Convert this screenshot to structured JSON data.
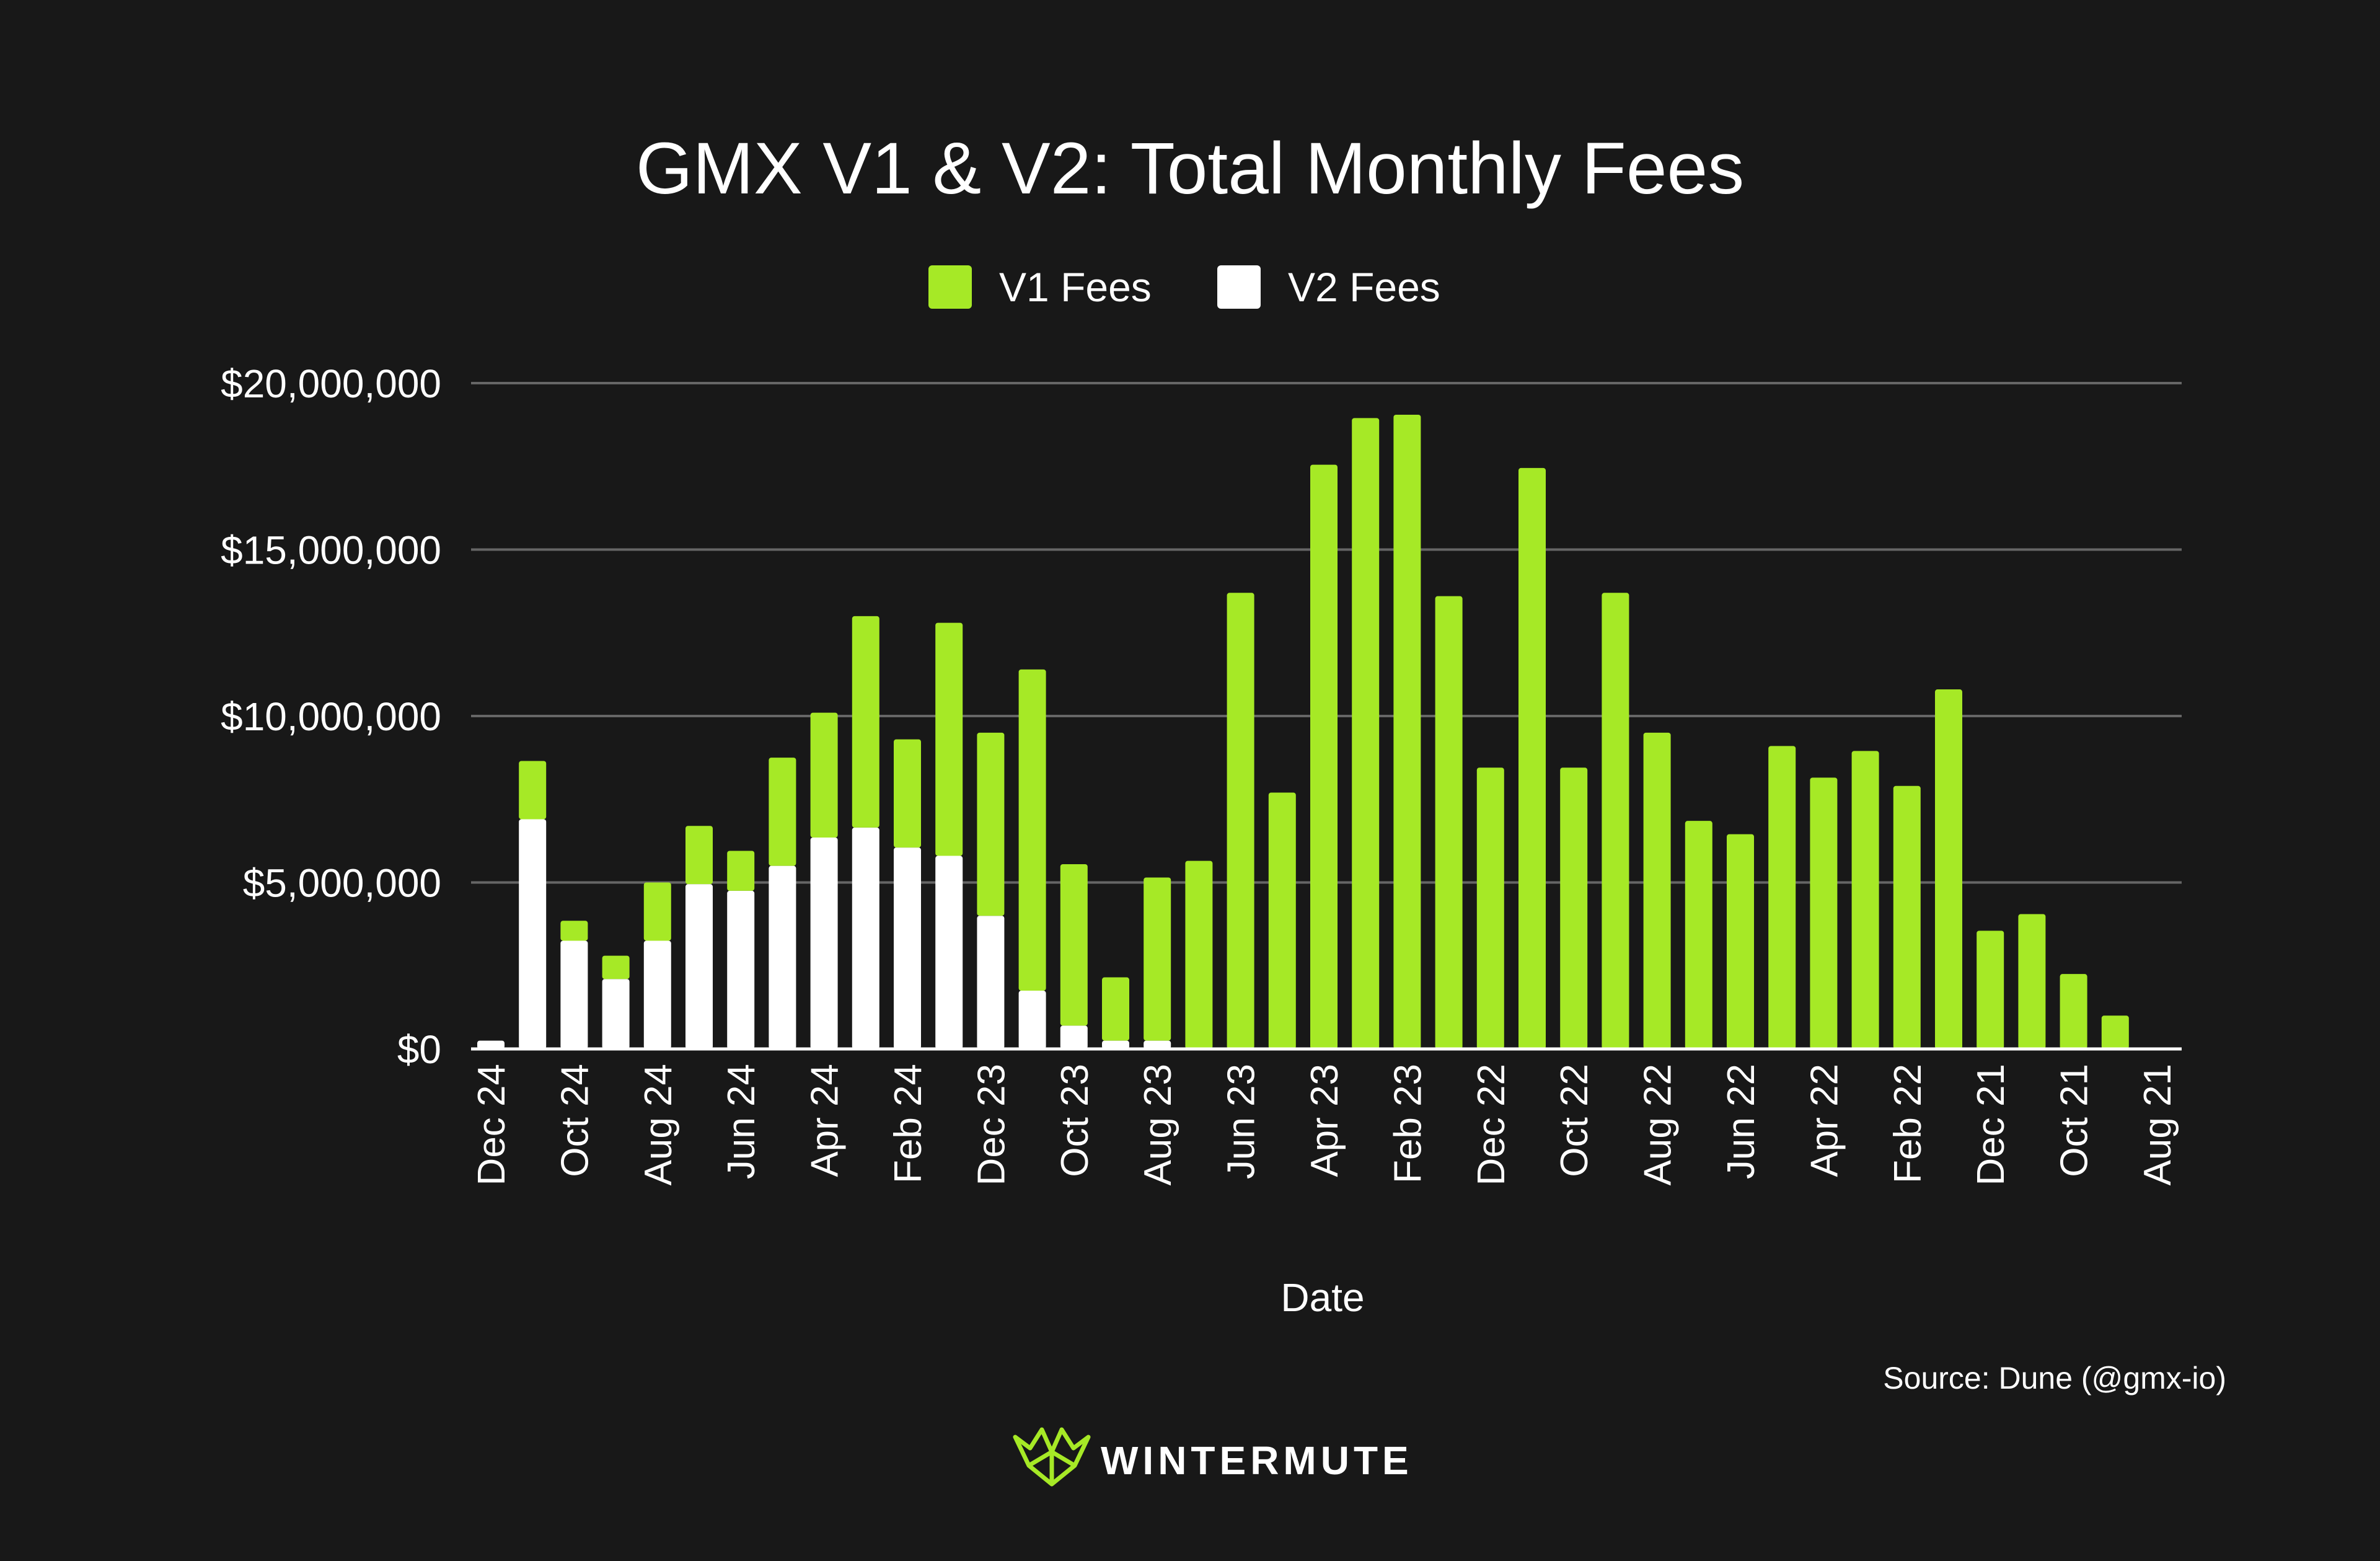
{
  "chart_data": {
    "type": "bar",
    "stacked": true,
    "title": "GMX V1 & V2: Total Monthly Fees",
    "xlabel": "Date",
    "ylabel": "",
    "ylim": [
      0,
      20000000
    ],
    "yticks": [
      0,
      5000000,
      10000000,
      15000000,
      20000000
    ],
    "ytick_labels": [
      "$0",
      "$5,000,000",
      "$10,000,000",
      "$15,000,000",
      "$20,000,000"
    ],
    "grid": true,
    "legend_position": "top-center",
    "colors": {
      "v1": "#a6e926",
      "v2": "#ffffff",
      "background": "#181818",
      "grid": "#666666"
    },
    "categories": [
      "Dec 24",
      "Nov 24",
      "Oct 24",
      "Sep 24",
      "Aug 24",
      "Jul 24",
      "Jun 24",
      "May 24",
      "Apr 24",
      "Mar 24",
      "Feb 24",
      "Jan 24",
      "Dec 23",
      "Nov 23",
      "Oct 23",
      "Sep 23",
      "Aug 23",
      "Jul 23",
      "Jun 23",
      "May 23",
      "Apr 23",
      "Mar 23",
      "Feb 23",
      "Jan 23",
      "Dec 22",
      "Nov 22",
      "Oct 22",
      "Sep 22",
      "Aug 22",
      "Jul 22",
      "Jun 22",
      "May 22",
      "Apr 22",
      "Mar 22",
      "Feb 22",
      "Jan 22",
      "Dec 21",
      "Nov 21",
      "Oct 21",
      "Sep 21",
      "Aug 21"
    ],
    "x_tick_labels": [
      "Dec 24",
      "Oct 24",
      "Aug 24",
      "Jun 24",
      "Apr 24",
      "Feb 24",
      "Dec 23",
      "Oct 23",
      "Aug 23",
      "Jun 23",
      "Apr 23",
      "Feb 23",
      "Dec 22",
      "Oct 22",
      "Aug 22",
      "Jun 22",
      "Apr 22",
      "Feb 22",
      "Dec 21",
      "Oct 21",
      "Aug 21"
    ],
    "series": [
      {
        "name": "V1 Fees",
        "values": [
          0,
          1750000,
          600000,
          700000,
          1750000,
          1750000,
          1200000,
          3250000,
          3750000,
          6350000,
          3250000,
          7000000,
          5500000,
          9650000,
          4850000,
          1900000,
          4900000,
          5650000,
          13700000,
          7700000,
          17550000,
          18950000,
          19050000,
          13600000,
          8450000,
          17450000,
          8450000,
          13700000,
          9500000,
          6850000,
          6450000,
          9100000,
          8150000,
          8950000,
          7900000,
          10800000,
          3550000,
          4050000,
          2250000,
          1000000,
          0
        ]
      },
      {
        "name": "V2 Fees",
        "values": [
          250000,
          6900000,
          3250000,
          2100000,
          3250000,
          4950000,
          4750000,
          5500000,
          6350000,
          6650000,
          6050000,
          5800000,
          4000000,
          1750000,
          700000,
          250000,
          250000,
          0,
          0,
          0,
          0,
          0,
          0,
          0,
          0,
          0,
          0,
          0,
          0,
          0,
          0,
          0,
          0,
          0,
          0,
          0,
          0,
          0,
          0,
          0,
          0
        ]
      }
    ]
  },
  "source": "Source: Dune (@gmx-io)",
  "brand": {
    "name": "WINTERMUTE",
    "logo_icon": "wintermute-logo-icon"
  }
}
